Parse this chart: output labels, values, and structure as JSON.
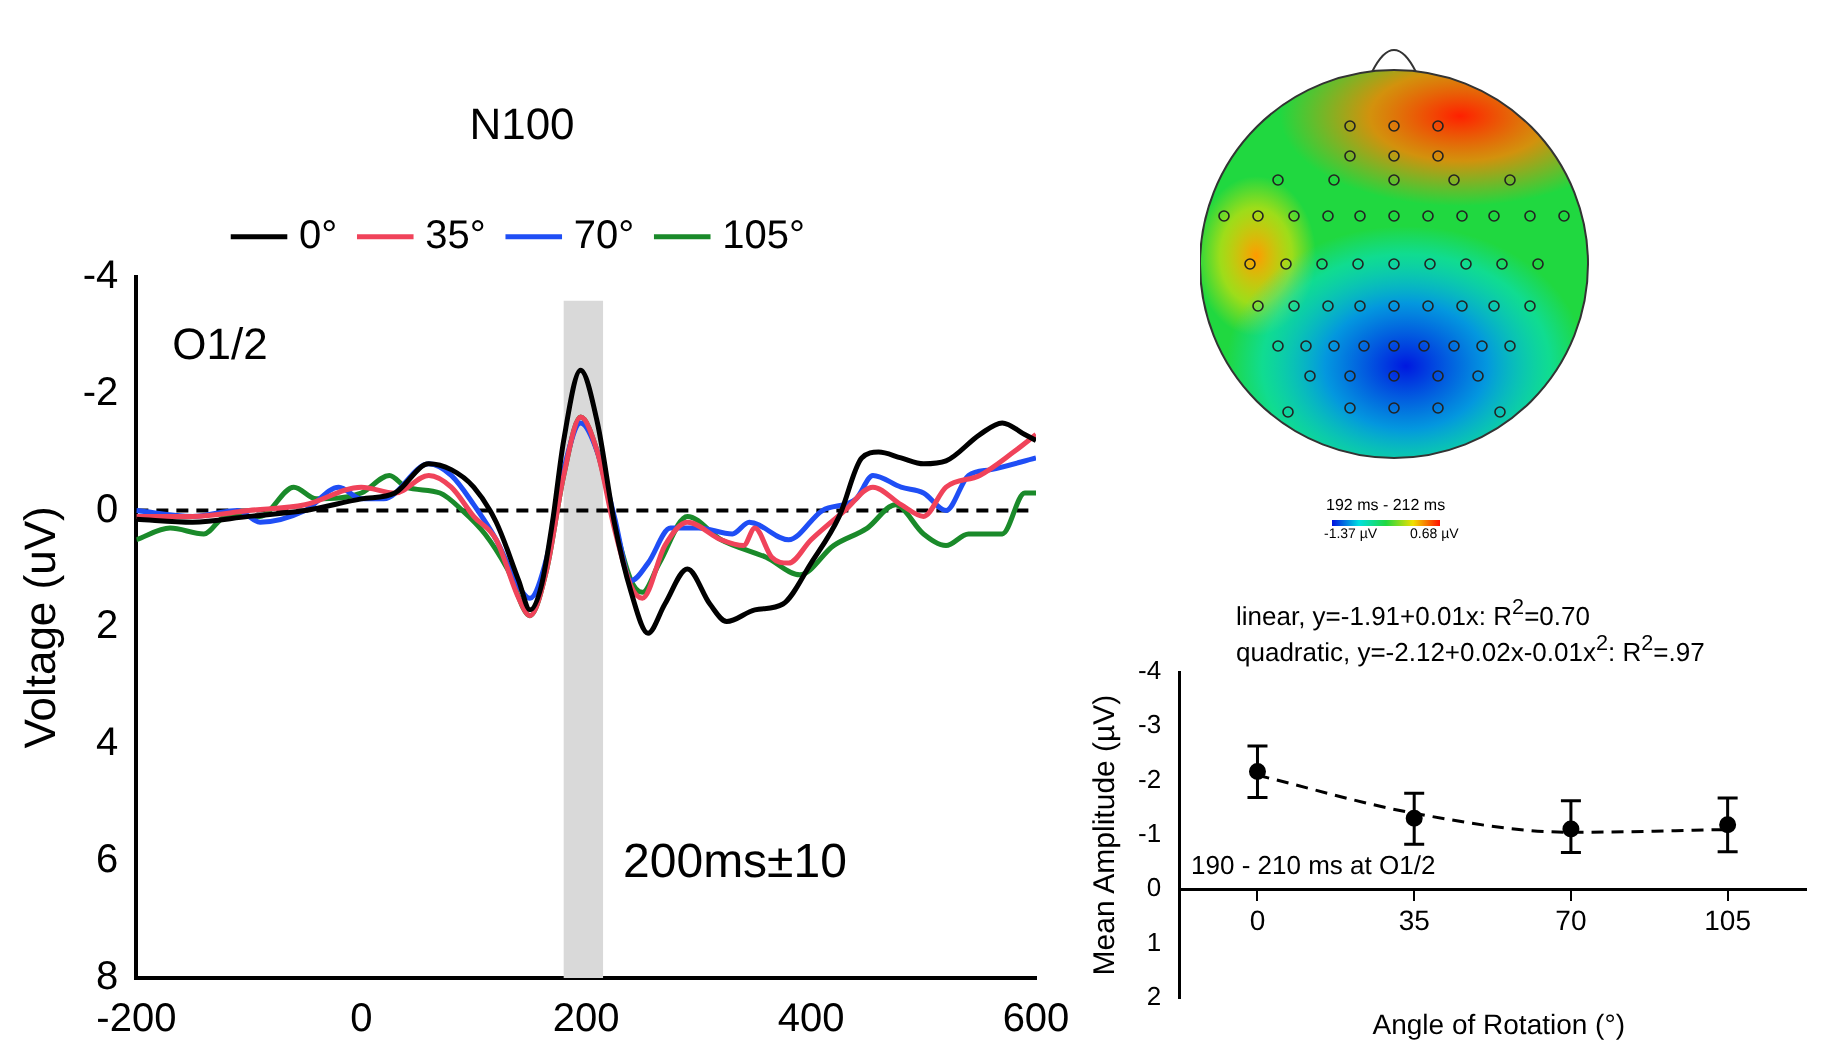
{
  "chart_data": [
    {
      "type": "line",
      "title": "N100",
      "xlabel": null,
      "ylabel": "Voltage (uV)",
      "legend": "top",
      "line_style": "solid",
      "marker": "none",
      "xlim": [
        -200,
        600
      ],
      "xticks": [
        -200,
        0,
        200,
        400,
        600
      ],
      "ylim": [
        8,
        -4
      ],
      "yticks": [
        -4,
        -2,
        0,
        2,
        4,
        6,
        8
      ],
      "annotations": [
        "O1/2"
      ],
      "ref_lines": [
        {
          "axis": "y",
          "value": 0,
          "color": "#000000",
          "line_style": "dashed"
        }
      ],
      "bands": [
        {
          "axis": "x",
          "from": 180,
          "to": 215,
          "label": "200ms±10",
          "color": "#d9d9d9"
        }
      ],
      "series": [
        {
          "name": "0°",
          "color": "#000000",
          "x": [
            -200,
            -150,
            -100,
            -50,
            0,
            30,
            60,
            80,
            100,
            120,
            140,
            150,
            160,
            170,
            180,
            195,
            210,
            225,
            240,
            255,
            270,
            290,
            310,
            325,
            350,
            375,
            400,
            425,
            445,
            460,
            480,
            500,
            520,
            550,
            570,
            590,
            600
          ],
          "values": [
            0.15,
            0.2,
            0.1,
            0.0,
            -0.2,
            -0.3,
            -0.8,
            -0.7,
            -0.4,
            0.2,
            1.2,
            1.7,
            1.3,
            0.2,
            -1.2,
            -2.4,
            -1.5,
            0.2,
            1.4,
            2.1,
            1.6,
            1.0,
            1.6,
            1.9,
            1.7,
            1.6,
            0.9,
            0.1,
            -0.9,
            -1.0,
            -0.9,
            -0.8,
            -0.85,
            -1.3,
            -1.5,
            -1.3,
            -1.2
          ]
        },
        {
          "name": "35°",
          "color": "#f0435a",
          "x": [
            -200,
            -150,
            -100,
            -50,
            0,
            30,
            60,
            80,
            100,
            120,
            140,
            150,
            165,
            180,
            195,
            210,
            225,
            240,
            250,
            270,
            290,
            320,
            340,
            350,
            365,
            380,
            400,
            430,
            455,
            480,
            500,
            520,
            550,
            580,
            600
          ],
          "values": [
            0.1,
            0.1,
            0.0,
            -0.1,
            -0.4,
            -0.3,
            -0.6,
            -0.4,
            0.1,
            0.5,
            1.5,
            1.8,
            1.0,
            -0.6,
            -1.6,
            -1.0,
            0.3,
            1.3,
            1.5,
            0.6,
            0.2,
            0.5,
            0.6,
            0.3,
            0.8,
            0.9,
            0.5,
            0.0,
            -0.4,
            -0.1,
            0.1,
            -0.4,
            -0.6,
            -1.0,
            -1.3
          ]
        },
        {
          "name": "70°",
          "color": "#1f4ef5",
          "x": [
            -200,
            -150,
            -110,
            -90,
            -50,
            -20,
            0,
            20,
            60,
            80,
            100,
            120,
            140,
            150,
            165,
            180,
            195,
            210,
            225,
            240,
            255,
            275,
            300,
            330,
            345,
            380,
            410,
            440,
            455,
            480,
            500,
            520,
            540,
            560,
            600
          ],
          "values": [
            0.0,
            0.1,
            0.0,
            0.2,
            0.0,
            -0.4,
            -0.2,
            -0.2,
            -0.8,
            -0.6,
            -0.1,
            0.5,
            1.3,
            1.5,
            0.8,
            -0.7,
            -1.5,
            -1.0,
            0.1,
            1.2,
            0.9,
            0.3,
            0.3,
            0.4,
            0.2,
            0.5,
            0.0,
            -0.2,
            -0.6,
            -0.4,
            -0.3,
            0.0,
            -0.6,
            -0.7,
            -0.9
          ]
        },
        {
          "name": "105°",
          "color": "#1a8a2a",
          "x": [
            -200,
            -170,
            -140,
            -120,
            -90,
            -60,
            -40,
            0,
            25,
            40,
            70,
            90,
            110,
            130,
            150,
            165,
            180,
            195,
            210,
            225,
            240,
            250,
            265,
            290,
            320,
            360,
            390,
            420,
            450,
            475,
            500,
            520,
            540,
            570,
            590,
            600
          ],
          "values": [
            0.5,
            0.3,
            0.4,
            0.1,
            0.1,
            -0.4,
            -0.2,
            -0.3,
            -0.6,
            -0.4,
            -0.3,
            0.0,
            0.4,
            1.0,
            1.8,
            1.0,
            -0.6,
            -1.6,
            -1.0,
            0.2,
            1.2,
            1.4,
            0.9,
            0.1,
            0.5,
            0.8,
            1.1,
            0.6,
            0.3,
            -0.1,
            0.4,
            0.6,
            0.4,
            0.4,
            -0.3,
            -0.3
          ]
        }
      ]
    },
    {
      "type": "other",
      "annotations": [
        "192 ms - 212 ms",
        "-1.37 µV",
        "0.68 µV"
      ]
    },
    {
      "type": "scatter",
      "xlabel": "Angle of Rotation (°)",
      "ylabel": "Mean Amplitude (µV)",
      "legend": false,
      "categories": [
        "0",
        "35",
        "70",
        "105"
      ],
      "ylim": [
        2,
        -4
      ],
      "yticks": [
        -4,
        -3,
        -2,
        -1,
        0,
        1,
        2
      ],
      "annotations": [
        "linear, y=-1.91+0.01x: R$^{2}$=0.70",
        "quadratic, y=-2.12+0.02x-0.01x$^{2}$: R$^{2}$=.97",
        "190 - 210 ms at O1/2"
      ],
      "series": [
        {
          "type": "scatter",
          "color": "#000000",
          "marker": "circle",
          "values": [
            -2.17,
            -1.31,
            -1.11,
            -1.19
          ],
          "errors": [
            [
              -2.64,
              -1.69
            ],
            [
              -1.77,
              -0.83
            ],
            [
              -1.63,
              -0.68
            ],
            [
              -1.68,
              -0.69
            ]
          ]
        },
        {
          "type": "line",
          "color": "#000000",
          "marker": "none",
          "line_style": "dashed",
          "values": [
            -2.1,
            -1.4,
            -1.05,
            -1.1
          ]
        }
      ]
    }
  ]
}
